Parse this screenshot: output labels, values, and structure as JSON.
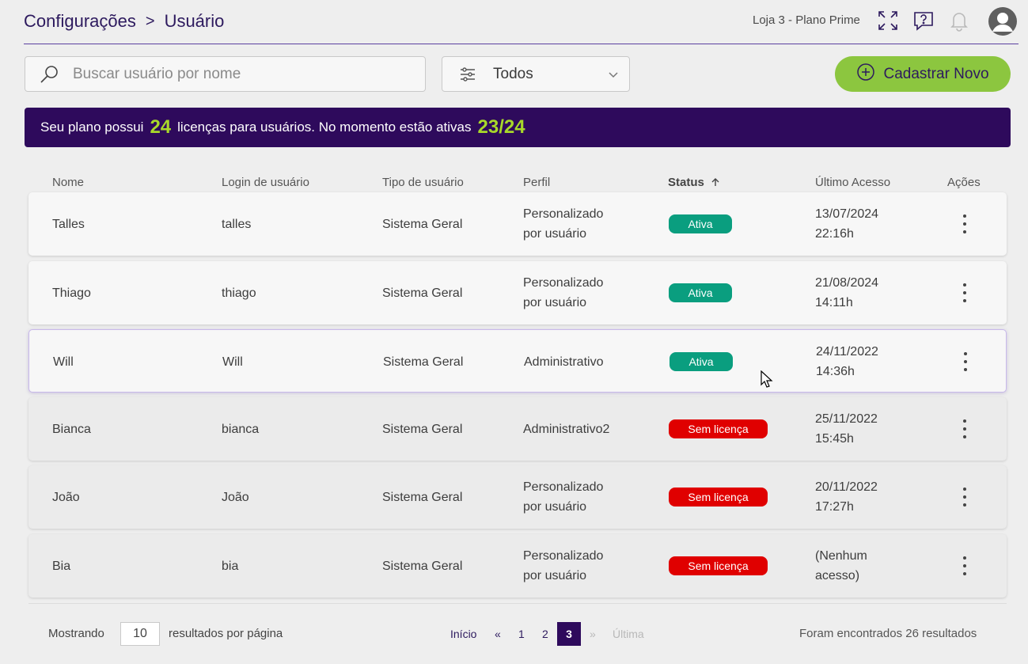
{
  "breadcrumb": {
    "parent": "Configurações",
    "separator": ">",
    "current": "Usuário"
  },
  "header": {
    "store": "Loja 3 - Plano Prime",
    "icons": [
      "fullscreen-icon",
      "help-icon",
      "bell-icon",
      "user-avatar-icon"
    ]
  },
  "search": {
    "placeholder": "Buscar usuário por nome",
    "value": ""
  },
  "filter": {
    "value": "Todos"
  },
  "new_button": {
    "label": "Cadastrar Novo"
  },
  "banner": {
    "text1": "Seu plano possui",
    "licenses": "24",
    "text2": "licenças para usuários. No momento estão ativas",
    "active": "23/24"
  },
  "table": {
    "columns": [
      "Nome",
      "Login de usuário",
      "Tipo de usuário",
      "Perfil",
      "Status",
      "Último Acesso",
      "Ações"
    ],
    "rows": [
      {
        "name": "Talles",
        "login": "talles",
        "type": "Sistema Geral",
        "profile1": "Personalizado",
        "profile2": "por usuário",
        "status": "Ativa",
        "access1": "13/07/2024",
        "access2": "22:16h"
      },
      {
        "name": "Thiago",
        "login": "thiago",
        "type": "Sistema Geral",
        "profile1": "Personalizado",
        "profile2": "por usuário",
        "status": "Ativa",
        "access1": "21/08/2024",
        "access2": "14:11h"
      },
      {
        "name": "Will",
        "login": "Will",
        "type": "Sistema Geral",
        "profile1": "Administrativo",
        "profile2": "",
        "status": "Ativa",
        "access1": "24/11/2022",
        "access2": "14:36h"
      },
      {
        "name": "Bianca",
        "login": "bianca",
        "type": "Sistema Geral",
        "profile1": "Administrativo2",
        "profile2": "",
        "status": "Sem licença",
        "access1": "25/11/2022",
        "access2": "15:45h"
      },
      {
        "name": "João",
        "login": "João",
        "type": "Sistema Geral",
        "profile1": "Personalizado",
        "profile2": "por usuário",
        "status": "Sem licença",
        "access1": "20/11/2022",
        "access2": "17:27h"
      },
      {
        "name": "Bia",
        "login": "bia",
        "type": "Sistema Geral",
        "profile1": "Personalizado",
        "profile2": "por usuário",
        "status": "Sem licença",
        "access1": "(Nenhum",
        "access2": "acesso)"
      }
    ]
  },
  "footer": {
    "showing": "Mostrando",
    "per_page": "10",
    "per_page_label": "resultados por página",
    "first": "Início",
    "prev": "«",
    "pages": [
      "1",
      "2",
      "3"
    ],
    "next": "»",
    "last": "Última",
    "total": "Foram encontrados 26 resultados"
  },
  "colors": {
    "accent": "#2e0a5c",
    "green": "#8cc63f",
    "active": "#0a9e7f",
    "no_license": "#e00000",
    "highlight": "#a8d82a"
  }
}
